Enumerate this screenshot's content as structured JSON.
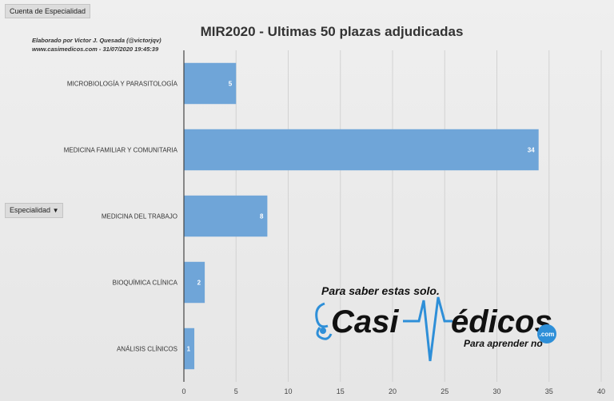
{
  "pivot": {
    "value_field": "Cuenta de Especialidad",
    "row_field": "Especialidad"
  },
  "credits": {
    "line1": "Elaborado por Victor J. Quesada (@victorjqv)",
    "line2": "www.casimedicos.com - 31/07/2020 19:45:39"
  },
  "chart_data": {
    "type": "bar",
    "orientation": "horizontal",
    "title": "MIR2020 - Ultimas 50 plazas adjudicadas",
    "categories": [
      "MICROBIOLOGÍA Y PARASITOLOGÍA",
      "MEDICINA FAMILIAR Y COMUNITARIA",
      "MEDICINA DEL TRABAJO",
      "BIOQUÍMICA CLÍNICA",
      "ANÁLISIS CLÍNICOS"
    ],
    "values": [
      5,
      34,
      8,
      2,
      1
    ],
    "xlim": [
      0,
      40
    ],
    "xticks": [
      0,
      5,
      10,
      15,
      20,
      25,
      30,
      35,
      40
    ],
    "grid": true,
    "data_labels": true,
    "bar_color": "#6fa5d8",
    "label_color": "#ffffff"
  },
  "logo": {
    "tagline_top": "Para saber estas solo.",
    "brand_left": "Casi",
    "brand_right": "édicos",
    "suffix": ".com",
    "tagline_bottom": "Para aprender no",
    "color_brand": "#111111",
    "color_accent": "#2e8fd8"
  }
}
